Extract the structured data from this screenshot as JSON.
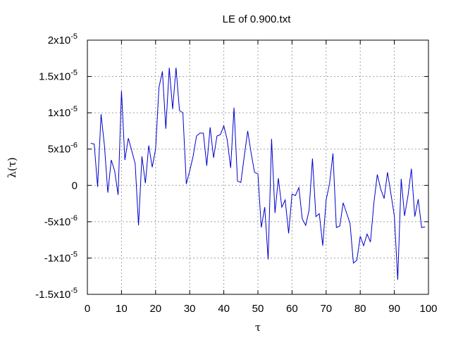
{
  "chart_data": {
    "type": "line",
    "title": "LE of 0.900.txt",
    "xlabel": "τ",
    "ylabel": "λ(τ)",
    "xlim": [
      0,
      100
    ],
    "ylim": [
      -1.5e-05,
      2e-05
    ],
    "x_ticks": [
      0,
      10,
      20,
      30,
      40,
      50,
      60,
      70,
      80,
      90,
      100
    ],
    "y_ticks": [
      {
        "value": 2e-05,
        "mantissa": "2x10",
        "exp": "-5"
      },
      {
        "value": 1.5e-05,
        "mantissa": "1.5x10",
        "exp": "-5"
      },
      {
        "value": 1e-05,
        "mantissa": "1x10",
        "exp": "-5"
      },
      {
        "value": 5e-06,
        "mantissa": "5x10",
        "exp": "-6"
      },
      {
        "value": 0,
        "mantissa": "0",
        "exp": ""
      },
      {
        "value": -5e-06,
        "mantissa": "-5x10",
        "exp": "-6"
      },
      {
        "value": -1e-05,
        "mantissa": "-1x10",
        "exp": "-5"
      },
      {
        "value": -1.5e-05,
        "mantissa": "-1.5x10",
        "exp": "-5"
      }
    ],
    "grid": true,
    "series": [
      {
        "color": "#0000cc",
        "x": [
          1,
          2,
          3,
          4,
          5,
          6,
          7,
          8,
          9,
          10,
          11,
          12,
          13,
          14,
          15,
          16,
          17,
          18,
          19,
          20,
          21,
          22,
          23,
          24,
          25,
          26,
          27,
          28,
          29,
          30,
          31,
          32,
          33,
          34,
          35,
          36,
          37,
          38,
          39,
          40,
          41,
          42,
          43,
          44,
          45,
          46,
          47,
          48,
          49,
          50,
          51,
          52,
          53,
          54,
          55,
          56,
          57,
          58,
          59,
          60,
          61,
          62,
          63,
          64,
          65,
          66,
          67,
          68,
          69,
          70,
          71,
          72,
          73,
          74,
          75,
          76,
          77,
          78,
          79,
          80,
          81,
          82,
          83,
          84,
          85,
          86,
          87,
          88,
          89,
          90,
          91,
          92,
          93,
          94,
          95,
          96,
          97,
          98,
          99
        ],
        "y": [
          5.8e-06,
          5.7e-06,
          -2e-07,
          9.8e-06,
          5.5e-06,
          -1e-06,
          3.5e-06,
          2e-06,
          -1.3e-06,
          1.3e-05,
          3.5e-06,
          6.5e-06,
          4.8e-06,
          3e-06,
          -5.5e-06,
          4e-06,
          3e-07,
          5.5e-06,
          2.5e-06,
          5e-06,
          1.35e-05,
          1.57e-05,
          7.8e-06,
          1.62e-05,
          1.05e-05,
          1.62e-05,
          1.03e-05,
          1e-05,
          2e-07,
          2e-06,
          4e-06,
          6.8e-06,
          7.2e-06,
          7.2e-06,
          2.7e-06,
          8e-06,
          3.8e-06,
          6.8e-06,
          7e-06,
          8.2e-06,
          6.3e-06,
          2.4e-06,
          1.07e-05,
          6e-07,
          4e-07,
          4e-06,
          7.5e-06,
          4.5e-06,
          1.8e-06,
          1.6e-06,
          -5.8e-06,
          -3e-06,
          -1.02e-05,
          6.4e-06,
          -3.8e-06,
          1e-06,
          -3e-06,
          -2e-06,
          -6.6e-06,
          -1.2e-06,
          -1.4e-06,
          -3e-07,
          -4.6e-06,
          -5.5e-06,
          -3.4e-06,
          3.7e-06,
          -4.3e-06,
          -3.9e-06,
          -8.3e-06,
          -2e-06,
          2e-07,
          4.4e-06,
          -5.8e-06,
          -5.6e-06,
          -2.4e-06,
          -3.8e-06,
          -5.2e-06,
          -1.07e-05,
          -1.03e-05,
          -7e-06,
          -8.3e-06,
          -6.7e-06,
          -7.8e-06,
          -2.4e-06,
          1.5e-06,
          -5e-07,
          -1.8e-06,
          1.8e-06,
          -1.2e-06,
          -4.2e-06,
          -1.3e-05,
          9e-07,
          -4.2e-06,
          -1.4e-06,
          2.3e-06,
          -4.3e-06,
          -1.9e-06,
          -5.8e-06,
          -5.7e-06
        ]
      }
    ]
  }
}
